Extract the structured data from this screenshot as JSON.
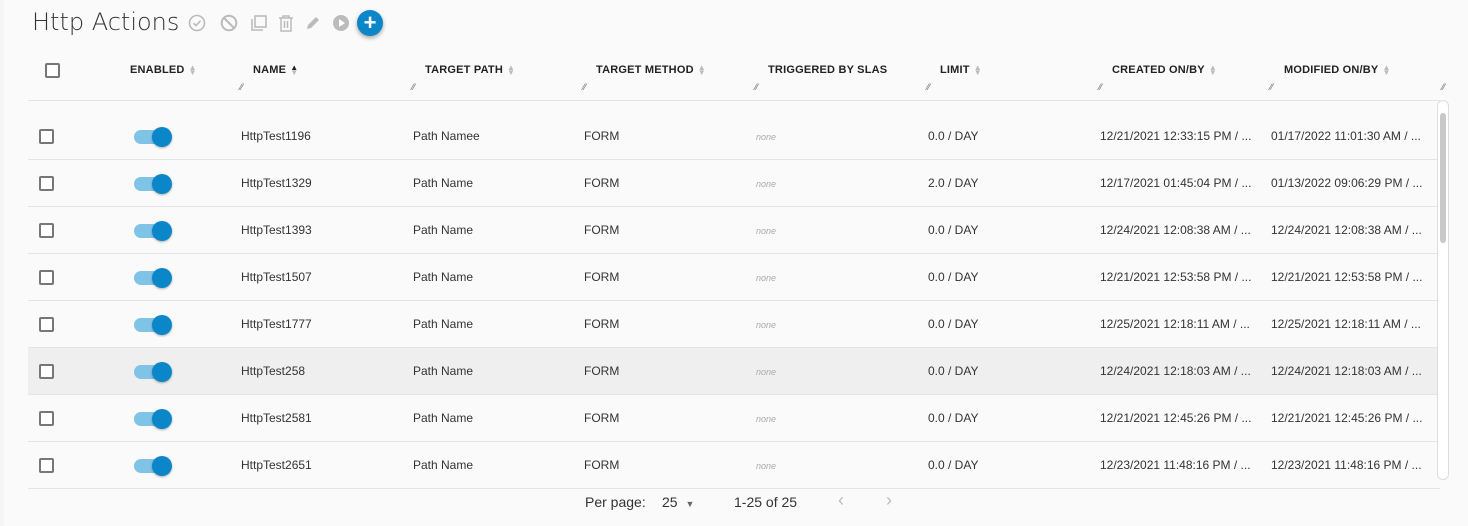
{
  "title": "Http Actions",
  "toolbar": [
    {
      "icon": "check-circle-icon"
    },
    {
      "icon": "block-icon"
    },
    {
      "icon": "copy-icon"
    },
    {
      "icon": "trash-icon"
    },
    {
      "icon": "pencil-icon"
    },
    {
      "icon": "play-icon"
    },
    {
      "icon": "plus-icon"
    }
  ],
  "columns": {
    "enabled": "ENABLED",
    "name": "NAME",
    "target_path": "TARGET PATH",
    "target_method": "TARGET METHOD",
    "triggered": "TRIGGERED BY SLAS",
    "limit": "LIMIT",
    "created": "CREATED ON/BY",
    "modified": "MODIFIED ON/BY"
  },
  "rows": [
    {
      "enabled": true,
      "name": "HttpTest1196",
      "path": "Path Namee",
      "method": "FORM",
      "slas": "none",
      "limit": "0.0 / DAY",
      "created": "12/21/2021 12:33:15 PM / ...",
      "modified": "01/17/2022 11:01:30 AM / ..."
    },
    {
      "enabled": true,
      "name": "HttpTest1329",
      "path": "Path Name",
      "method": "FORM",
      "slas": "none",
      "limit": "2.0 / DAY",
      "created": "12/17/2021 01:45:04 PM / ...",
      "modified": "01/13/2022 09:06:29 PM / ..."
    },
    {
      "enabled": true,
      "name": "HttpTest1393",
      "path": "Path Name",
      "method": "FORM",
      "slas": "none",
      "limit": "0.0 / DAY",
      "created": "12/24/2021 12:08:38 AM / ...",
      "modified": "12/24/2021 12:08:38 AM / ..."
    },
    {
      "enabled": true,
      "name": "HttpTest1507",
      "path": "Path Name",
      "method": "FORM",
      "slas": "none",
      "limit": "0.0 / DAY",
      "created": "12/21/2021 12:53:58 PM / ...",
      "modified": "12/21/2021 12:53:58 PM / ..."
    },
    {
      "enabled": true,
      "name": "HttpTest1777",
      "path": "Path Name",
      "method": "FORM",
      "slas": "none",
      "limit": "0.0 / DAY",
      "created": "12/25/2021 12:18:11 AM / ...",
      "modified": "12/25/2021 12:18:11 AM / ..."
    },
    {
      "enabled": true,
      "name": "HttpTest258",
      "path": "Path Name",
      "method": "FORM",
      "slas": "none",
      "limit": "0.0 / DAY",
      "created": "12/24/2021 12:18:03 AM / ...",
      "modified": "12/24/2021 12:18:03 AM / ...",
      "hover": true
    },
    {
      "enabled": true,
      "name": "HttpTest2581",
      "path": "Path Name",
      "method": "FORM",
      "slas": "none",
      "limit": "0.0 / DAY",
      "created": "12/21/2021 12:45:26 PM / ...",
      "modified": "12/21/2021 12:45:26 PM / ..."
    },
    {
      "enabled": true,
      "name": "HttpTest2651",
      "path": "Path Name",
      "method": "FORM",
      "slas": "none",
      "limit": "0.0 / DAY",
      "created": "12/23/2021 11:48:16 PM / ...",
      "modified": "12/23/2021 11:48:16 PM / ..."
    }
  ],
  "pagination": {
    "per_page_label": "Per page:",
    "per_page": "25",
    "range": "1-25 of 25"
  },
  "colors": {
    "accent": "#0a86c9",
    "toggle_track": "#7fc3e6"
  }
}
